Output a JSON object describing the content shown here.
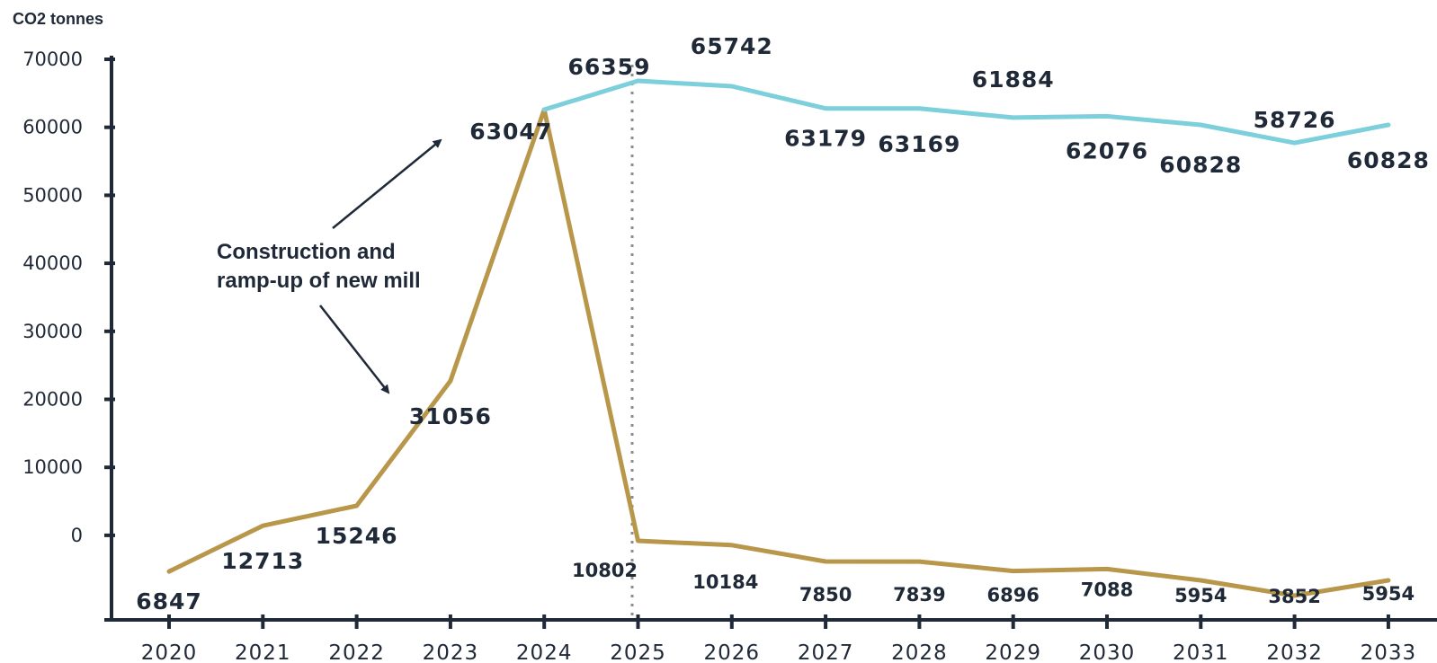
{
  "chart_data": {
    "type": "line",
    "ylabel": "CO2 tonnes",
    "yticks": [
      "70000",
      "60000",
      "50000",
      "40000",
      "30000",
      "20000",
      "10000",
      "0"
    ],
    "x": [
      "2020",
      "2021",
      "2022",
      "2023",
      "2024",
      "2025",
      "2026",
      "2027",
      "2028",
      "2029",
      "2030",
      "2031",
      "2032",
      "2033"
    ],
    "ylim": [
      0,
      70000
    ],
    "series": [
      {
        "color": "#b8974a",
        "values": [
          6847,
          12713,
          15246,
          31056,
          63047,
          10802,
          10184,
          7850,
          7839,
          6896,
          7088,
          5954,
          3852,
          5954
        ]
      },
      {
        "color": "#7ccfdb",
        "values": [
          null,
          null,
          null,
          null,
          63047,
          66359,
          65742,
          63179,
          63169,
          61884,
          62076,
          60828,
          58726,
          60828
        ]
      }
    ],
    "annotation": {
      "line1": "Construction and",
      "line2": "ramp-up of new mill"
    }
  }
}
